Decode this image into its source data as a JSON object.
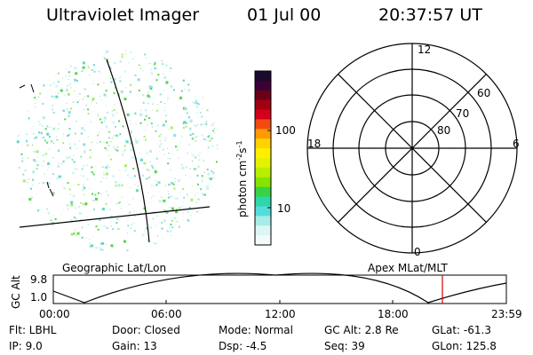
{
  "header": {
    "title": "Ultraviolet Imager",
    "date": "01 Jul 00",
    "time": "20:37:57 UT"
  },
  "image_panel": {
    "label": "Geographic Lat/Lon"
  },
  "colorbar": {
    "unit_main": "photon cm",
    "unit_exp1": "-2",
    "unit_s": "s",
    "unit_exp2": "-1",
    "tick_100": "100",
    "tick_10": "10",
    "colors": [
      "#1a0a2e",
      "#3b0035",
      "#6a0018",
      "#a00012",
      "#d2001a",
      "#f24a12",
      "#ff9a00",
      "#ffd200",
      "#fff000",
      "#e4f200",
      "#b8ee00",
      "#84e400",
      "#3ad244",
      "#2ed6aa",
      "#54dcdc",
      "#a8ece8",
      "#dcf6f4",
      "#f2fbfa"
    ]
  },
  "polar_panel": {
    "label": "Apex MLat/MLT",
    "mlt_top": "12",
    "mlt_left": "18",
    "mlt_right": "6",
    "mlt_bottom": "0",
    "lat_60": "60",
    "lat_70": "70",
    "lat_80": "80"
  },
  "altitude_plot": {
    "ylabel": "GC Alt",
    "ytick_top": "9.8",
    "ytick_bottom": "1.0",
    "xticks": [
      "00:00",
      "06:00",
      "12:00",
      "18:00",
      "23:59"
    ],
    "current_time_marker": "20:37:57"
  },
  "info": {
    "flt": "Flt: LBHL",
    "ip": "IP:  9.0",
    "door": "Door: Closed",
    "gain": "Gain: 13",
    "mode": "Mode: Normal",
    "dsp": "Dsp:    -4.5",
    "gc_alt": "GC Alt: 2.8 Re",
    "seq": "Seq: 39",
    "glat": "GLat: -61.3",
    "glon": "GLon: 125.8"
  }
}
